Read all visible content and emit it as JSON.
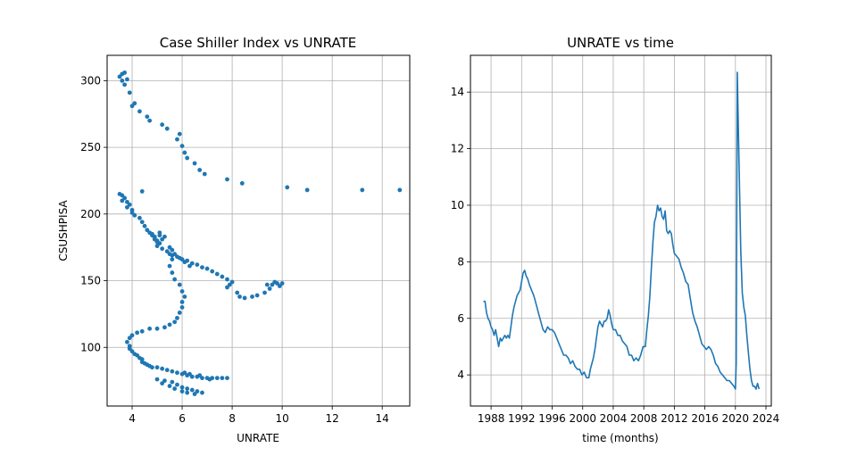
{
  "chart_data": [
    {
      "type": "scatter",
      "title": "Case Shiller Index vs UNRATE",
      "xlabel": "UNRATE",
      "ylabel": "CSUSHPISA",
      "xlim": [
        3.0,
        15.1
      ],
      "ylim": [
        56,
        319
      ],
      "xticks": [
        4,
        6,
        8,
        10,
        12,
        14
      ],
      "yticks": [
        100,
        150,
        200,
        250,
        300
      ],
      "grid": true,
      "color": "#1f77b4",
      "series": [
        {
          "points": [
            [
              3.6,
              305
            ],
            [
              3.5,
              303
            ],
            [
              3.7,
              306
            ],
            [
              3.6,
              300
            ],
            [
              3.8,
              301
            ],
            [
              3.7,
              297
            ],
            [
              3.9,
              291
            ],
            [
              4.0,
              281
            ],
            [
              4.1,
              283
            ],
            [
              4.3,
              277
            ],
            [
              4.6,
              273
            ],
            [
              4.7,
              270
            ],
            [
              5.2,
              267
            ],
            [
              5.4,
              264
            ],
            [
              5.9,
              260
            ],
            [
              5.8,
              256
            ],
            [
              6.0,
              251
            ],
            [
              6.1,
              246
            ],
            [
              6.2,
              242
            ],
            [
              6.5,
              238
            ],
            [
              6.7,
              233
            ],
            [
              6.9,
              230
            ],
            [
              7.8,
              226
            ],
            [
              8.4,
              223
            ],
            [
              10.2,
              220
            ],
            [
              11.0,
              218
            ],
            [
              13.2,
              218
            ],
            [
              14.7,
              218
            ],
            [
              4.4,
              217
            ],
            [
              3.5,
              215
            ],
            [
              3.6,
              214
            ],
            [
              3.7,
              212
            ],
            [
              3.6,
              210
            ],
            [
              3.8,
              209
            ],
            [
              3.9,
              207
            ],
            [
              3.8,
              205
            ],
            [
              4.0,
              203
            ],
            [
              4.0,
              201
            ],
            [
              4.1,
              199
            ],
            [
              4.3,
              197
            ],
            [
              4.4,
              194
            ],
            [
              4.5,
              191
            ],
            [
              4.6,
              188
            ],
            [
              4.7,
              186
            ],
            [
              4.8,
              184
            ],
            [
              4.9,
              182
            ],
            [
              5.0,
              180
            ],
            [
              5.1,
              178
            ],
            [
              5.0,
              176
            ],
            [
              5.2,
              174
            ],
            [
              5.4,
              172
            ],
            [
              5.5,
              170
            ],
            [
              5.6,
              169
            ],
            [
              5.8,
              168
            ],
            [
              6.0,
              166
            ],
            [
              6.2,
              165
            ],
            [
              6.4,
              163
            ],
            [
              6.6,
              162
            ],
            [
              6.8,
              160
            ],
            [
              7.0,
              159
            ],
            [
              7.2,
              157
            ],
            [
              7.4,
              155
            ],
            [
              7.6,
              153
            ],
            [
              7.8,
              151
            ],
            [
              8.0,
              149
            ],
            [
              7.9,
              147
            ],
            [
              7.8,
              145
            ],
            [
              8.2,
              141
            ],
            [
              8.3,
              138
            ],
            [
              8.5,
              137
            ],
            [
              8.8,
              138
            ],
            [
              9.0,
              139
            ],
            [
              9.3,
              141
            ],
            [
              9.5,
              144
            ],
            [
              9.6,
              147
            ],
            [
              9.7,
              149
            ],
            [
              9.8,
              148
            ],
            [
              10.0,
              148
            ],
            [
              9.9,
              146
            ],
            [
              9.4,
              147
            ],
            [
              4.8,
              185
            ],
            [
              4.9,
              183
            ],
            [
              5.1,
              184
            ],
            [
              5.2,
              181
            ],
            [
              5.0,
              179
            ],
            [
              4.9,
              181
            ],
            [
              5.3,
              183
            ],
            [
              5.1,
              186
            ],
            [
              5.5,
              175
            ],
            [
              5.6,
              173
            ],
            [
              5.7,
              170
            ],
            [
              5.9,
              167
            ],
            [
              6.1,
              164
            ],
            [
              6.3,
              161
            ],
            [
              5.6,
              166
            ],
            [
              5.5,
              161
            ],
            [
              5.6,
              156
            ],
            [
              5.7,
              151
            ],
            [
              5.9,
              147
            ],
            [
              6.0,
              142
            ],
            [
              6.1,
              138
            ],
            [
              6.0,
              134
            ],
            [
              6.0,
              130
            ],
            [
              5.9,
              126
            ],
            [
              5.8,
              122
            ],
            [
              5.7,
              119
            ],
            [
              5.5,
              117
            ],
            [
              5.3,
              115
            ],
            [
              5.0,
              114
            ],
            [
              4.7,
              114
            ],
            [
              4.4,
              112
            ],
            [
              4.2,
              111
            ],
            [
              4.0,
              109
            ],
            [
              3.9,
              107
            ],
            [
              3.8,
              104
            ],
            [
              3.9,
              101
            ],
            [
              3.9,
              99
            ],
            [
              4.0,
              97
            ],
            [
              4.1,
              95
            ],
            [
              4.2,
              94
            ],
            [
              4.3,
              92
            ],
            [
              4.4,
              91
            ],
            [
              4.4,
              89
            ],
            [
              4.5,
              88
            ],
            [
              4.6,
              87
            ],
            [
              4.7,
              86
            ],
            [
              4.8,
              85
            ],
            [
              5.0,
              85
            ],
            [
              5.2,
              84
            ],
            [
              5.4,
              83
            ],
            [
              5.6,
              82
            ],
            [
              5.8,
              81
            ],
            [
              6.0,
              80
            ],
            [
              6.2,
              79
            ],
            [
              6.4,
              78
            ],
            [
              6.6,
              78
            ],
            [
              6.8,
              77
            ],
            [
              7.0,
              77
            ],
            [
              7.2,
              77
            ],
            [
              7.4,
              77
            ],
            [
              7.6,
              77
            ],
            [
              7.8,
              77
            ],
            [
              5.0,
              76
            ],
            [
              5.3,
              75
            ],
            [
              5.6,
              74
            ],
            [
              5.8,
              72
            ],
            [
              6.0,
              70
            ],
            [
              6.2,
              69
            ],
            [
              6.4,
              68
            ],
            [
              6.6,
              67
            ],
            [
              6.8,
              66
            ],
            [
              5.2,
              73
            ],
            [
              5.5,
              71
            ],
            [
              5.7,
              69
            ],
            [
              6.0,
              67
            ],
            [
              6.2,
              66
            ],
            [
              6.5,
              65
            ],
            [
              6.3,
              80
            ],
            [
              6.1,
              81
            ],
            [
              6.7,
              79
            ],
            [
              7.1,
              76
            ]
          ]
        }
      ]
    },
    {
      "type": "line",
      "title": "UNRATE vs time",
      "xlabel": "time (months)",
      "ylabel": "",
      "xlim": [
        1985.3,
        2024.7
      ],
      "ylim": [
        2.9,
        15.3
      ],
      "xticks": [
        1988,
        1992,
        1996,
        2000,
        2004,
        2008,
        2012,
        2016,
        2020,
        2024
      ],
      "yticks": [
        4,
        6,
        8,
        10,
        12,
        14
      ],
      "grid": true,
      "color": "#1f77b4",
      "series": [
        {
          "x": [
            1987.0,
            1987.2,
            1987.4,
            1987.6,
            1987.8,
            1988.0,
            1988.2,
            1988.4,
            1988.6,
            1988.8,
            1989.0,
            1989.2,
            1989.4,
            1989.6,
            1989.8,
            1990.0,
            1990.2,
            1990.4,
            1990.6,
            1990.8,
            1991.0,
            1991.2,
            1991.4,
            1991.6,
            1991.8,
            1992.0,
            1992.2,
            1992.4,
            1992.6,
            1992.8,
            1993.0,
            1993.3,
            1993.6,
            1993.9,
            1994.2,
            1994.5,
            1994.8,
            1995.1,
            1995.4,
            1995.7,
            1996.0,
            1996.3,
            1996.6,
            1996.9,
            1997.2,
            1997.5,
            1997.8,
            1998.1,
            1998.4,
            1998.7,
            1999.0,
            1999.3,
            1999.6,
            1999.9,
            2000.2,
            2000.5,
            2000.8,
            2001.0,
            2001.2,
            2001.4,
            2001.6,
            2001.8,
            2002.0,
            2002.2,
            2002.4,
            2002.6,
            2002.8,
            2003.0,
            2003.2,
            2003.4,
            2003.6,
            2003.8,
            2004.0,
            2004.3,
            2004.6,
            2004.9,
            2005.2,
            2005.5,
            2005.8,
            2006.1,
            2006.4,
            2006.7,
            2007.0,
            2007.3,
            2007.6,
            2007.9,
            2008.2,
            2008.4,
            2008.6,
            2008.8,
            2009.0,
            2009.2,
            2009.4,
            2009.6,
            2009.8,
            2010.0,
            2010.2,
            2010.4,
            2010.6,
            2010.8,
            2011.0,
            2011.2,
            2011.4,
            2011.6,
            2011.8,
            2012.0,
            2012.3,
            2012.6,
            2012.9,
            2013.2,
            2013.5,
            2013.8,
            2014.1,
            2014.4,
            2014.7,
            2015.0,
            2015.3,
            2015.6,
            2015.9,
            2016.2,
            2016.5,
            2016.8,
            2017.1,
            2017.4,
            2017.7,
            2018.0,
            2018.3,
            2018.6,
            2018.9,
            2019.2,
            2019.5,
            2019.8,
            2020.0,
            2020.1,
            2020.25,
            2020.35,
            2020.5,
            2020.7,
            2020.9,
            2021.1,
            2021.3,
            2021.5,
            2021.7,
            2021.9,
            2022.1,
            2022.3,
            2022.5,
            2022.7,
            2022.9,
            2023.1
          ],
          "y": [
            6.6,
            6.6,
            6.2,
            6.0,
            5.9,
            5.7,
            5.6,
            5.4,
            5.6,
            5.3,
            5.0,
            5.3,
            5.2,
            5.3,
            5.4,
            5.3,
            5.4,
            5.3,
            5.7,
            6.1,
            6.4,
            6.6,
            6.8,
            6.9,
            7.0,
            7.3,
            7.6,
            7.7,
            7.5,
            7.4,
            7.2,
            7.0,
            6.8,
            6.5,
            6.2,
            5.9,
            5.6,
            5.5,
            5.7,
            5.6,
            5.6,
            5.5,
            5.3,
            5.1,
            4.9,
            4.7,
            4.7,
            4.6,
            4.4,
            4.5,
            4.3,
            4.2,
            4.2,
            4.0,
            4.1,
            3.9,
            3.9,
            4.2,
            4.4,
            4.6,
            4.9,
            5.3,
            5.7,
            5.9,
            5.8,
            5.7,
            5.9,
            5.9,
            6.0,
            6.3,
            6.1,
            5.8,
            5.6,
            5.6,
            5.4,
            5.4,
            5.2,
            5.1,
            5.0,
            4.7,
            4.7,
            4.5,
            4.6,
            4.5,
            4.7,
            5.0,
            5.0,
            5.6,
            6.1,
            6.8,
            7.8,
            8.7,
            9.4,
            9.6,
            10.0,
            9.8,
            9.9,
            9.6,
            9.5,
            9.8,
            9.1,
            9.0,
            9.1,
            9.0,
            8.6,
            8.3,
            8.2,
            8.1,
            7.8,
            7.6,
            7.3,
            7.2,
            6.7,
            6.2,
            5.9,
            5.7,
            5.4,
            5.1,
            5.0,
            4.9,
            5.0,
            4.9,
            4.7,
            4.4,
            4.3,
            4.1,
            4.0,
            3.9,
            3.8,
            3.8,
            3.7,
            3.6,
            3.5,
            4.4,
            14.7,
            13.2,
            11.1,
            8.4,
            6.9,
            6.4,
            6.1,
            5.4,
            4.8,
            4.2,
            3.8,
            3.6,
            3.6,
            3.5,
            3.7,
            3.5
          ]
        }
      ]
    }
  ]
}
